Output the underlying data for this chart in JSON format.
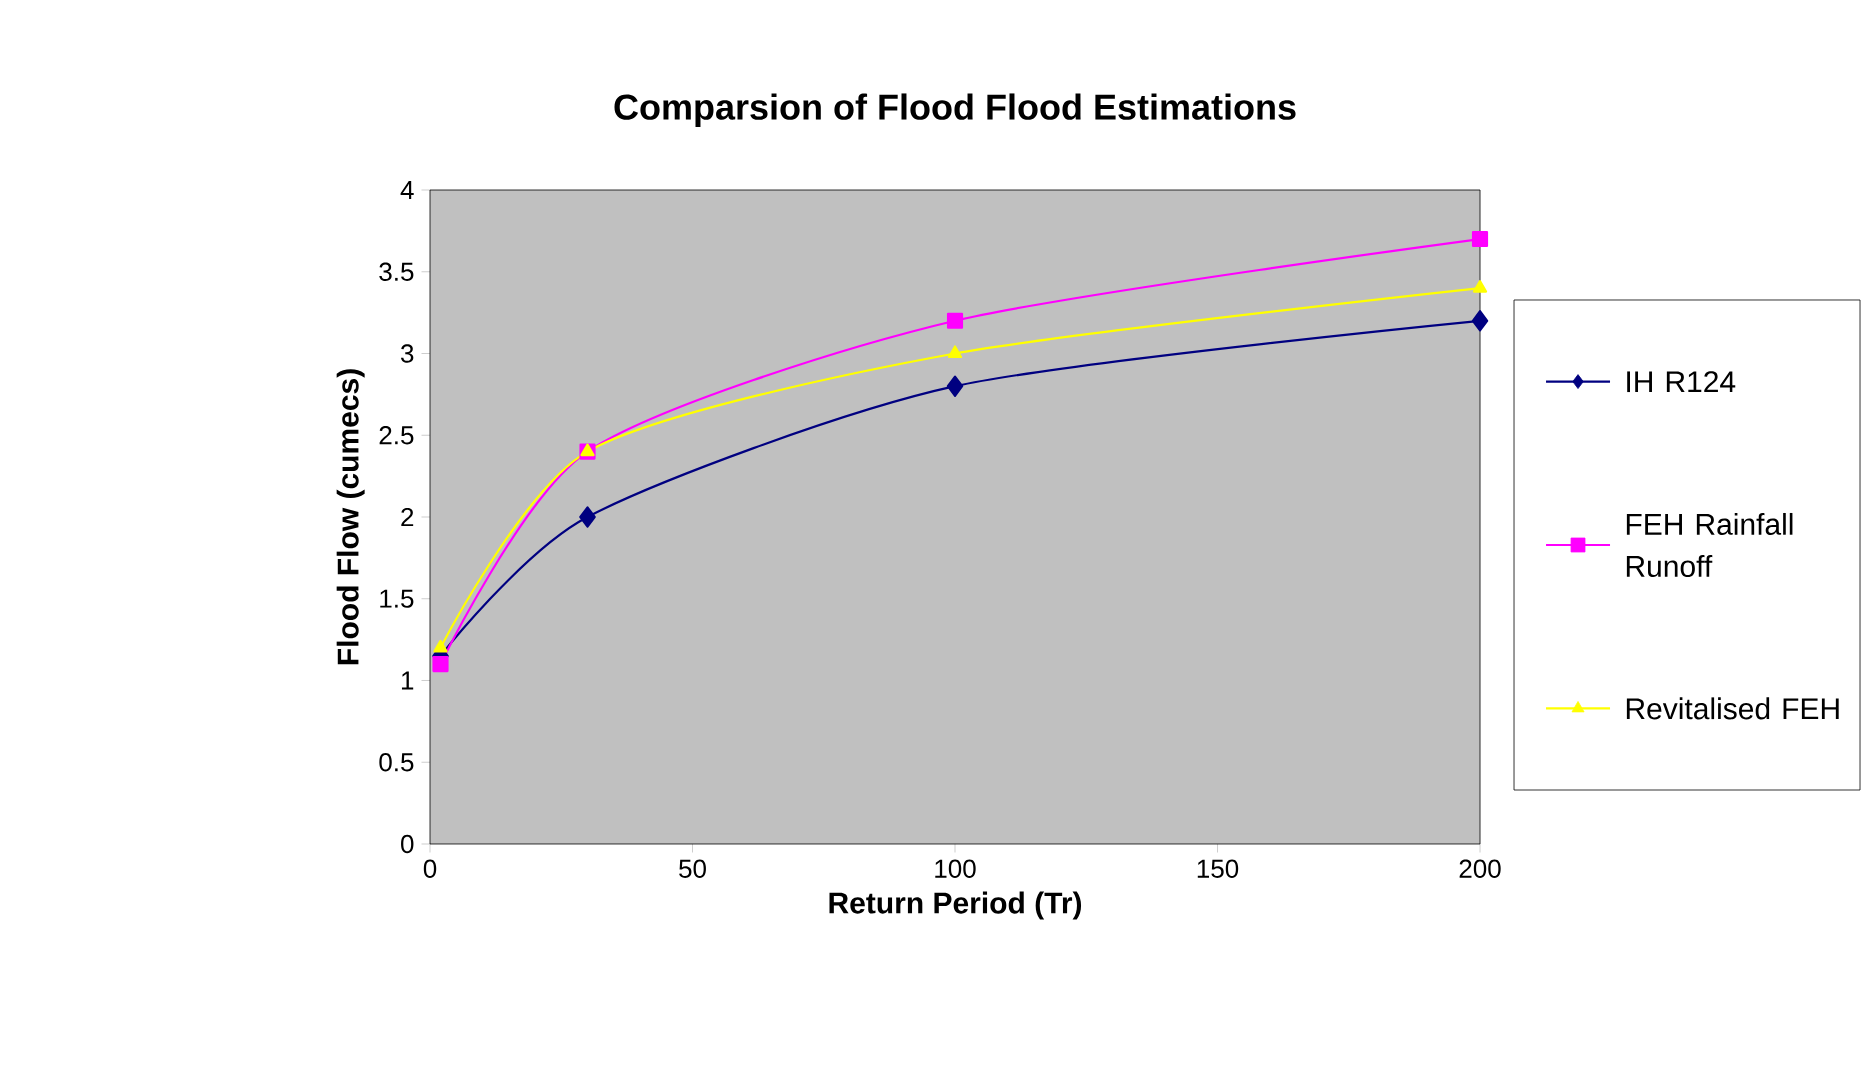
{
  "chart_data": {
    "type": "line",
    "title": "Comparsion of Flood Flood Estimations",
    "xlabel": "Return Period (Tr)",
    "ylabel": "Flood Flow (cumecs)",
    "x": [
      2,
      30,
      100,
      200
    ],
    "series": [
      {
        "name": "IH R124",
        "color": "#000080",
        "marker": "diamond",
        "values": [
          1.15,
          2.0,
          2.8,
          3.2
        ]
      },
      {
        "name": "FEH Rainfall Runoff",
        "color": "#ff00ff",
        "marker": "square",
        "values": [
          1.1,
          2.4,
          3.2,
          3.7
        ]
      },
      {
        "name": "Revitalised FEH",
        "color": "#ffff00",
        "marker": "triangle",
        "values": [
          1.2,
          2.4,
          3.0,
          3.4
        ]
      }
    ],
    "xlim": [
      0,
      200
    ],
    "xticks": [
      0,
      50,
      100,
      150,
      200
    ],
    "ylim": [
      0,
      4
    ],
    "yticks": [
      0,
      0.5,
      1,
      1.5,
      2,
      2.5,
      3,
      3.5,
      4
    ],
    "grid": false,
    "legend": "right"
  }
}
